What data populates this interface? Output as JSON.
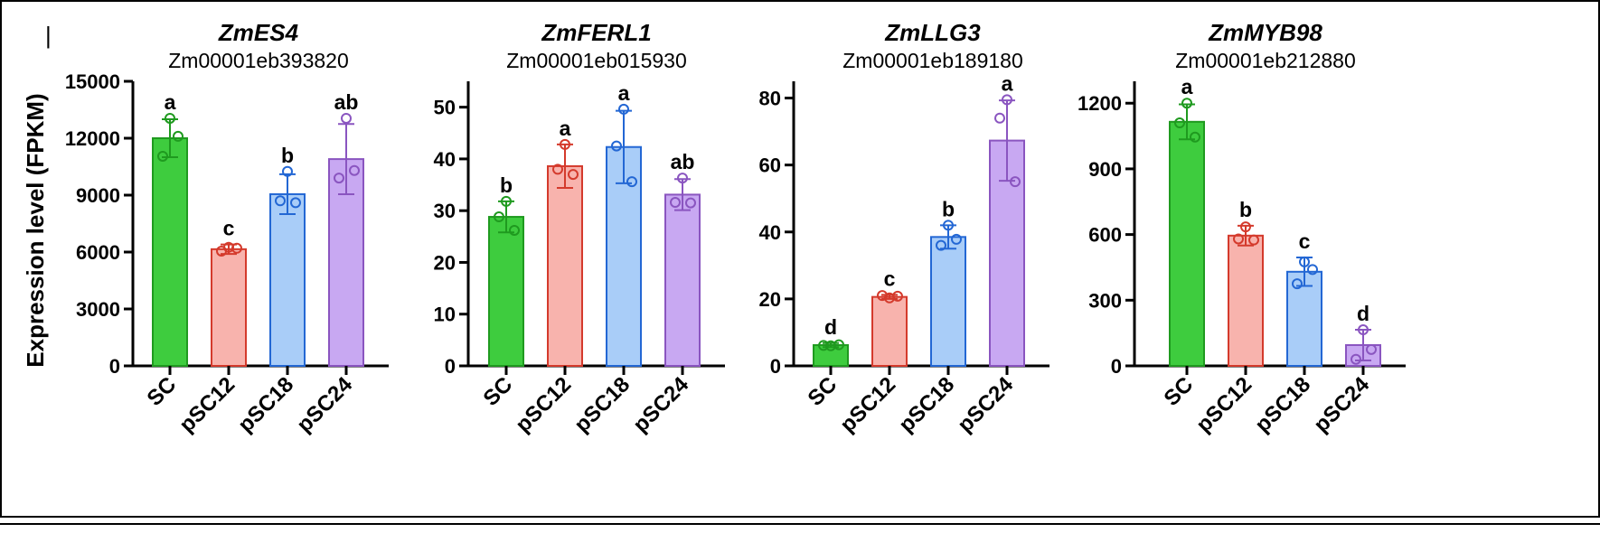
{
  "figure": {
    "ylabel": "Expression level (FPKM)",
    "panel_mark": "|"
  },
  "colors": {
    "SC": {
      "fill": "#3ecc3e",
      "stroke": "#1f9a1f"
    },
    "pSC12": {
      "fill": "#f8b3ad",
      "stroke": "#d43a2c"
    },
    "pSC18": {
      "fill": "#a9cdf8",
      "stroke": "#2367d4"
    },
    "pSC24": {
      "fill": "#c8a8f2",
      "stroke": "#8a55c0"
    }
  },
  "chart_data": [
    {
      "type": "bar",
      "title": "ZmES4",
      "subtitle": "Zm00001eb393820",
      "ylabel": "Expression level (FPKM)",
      "categories": [
        "SC",
        "pSC12",
        "pSC18",
        "pSC24"
      ],
      "values": [
        12000,
        6150,
        9050,
        10900
      ],
      "error": [
        1000,
        250,
        1050,
        1850
      ],
      "points": [
        [
          13050,
          11050,
          12100
        ],
        [
          6250,
          6050,
          6200
        ],
        [
          10250,
          8700,
          8600
        ],
        [
          13050,
          9900,
          10300
        ]
      ],
      "significance": [
        "a",
        "c",
        "b",
        "ab"
      ],
      "ylim": [
        0,
        15000
      ],
      "yticks": [
        0,
        3000,
        6000,
        9000,
        12000,
        15000
      ]
    },
    {
      "type": "bar",
      "title": "ZmFERL1",
      "subtitle": "Zm00001eb015930",
      "ylabel": "",
      "categories": [
        "SC",
        "pSC12",
        "pSC18",
        "pSC24"
      ],
      "values": [
        28.8,
        38.6,
        42.3,
        33.1
      ],
      "error": [
        3.0,
        4.2,
        7.0,
        3.0
      ],
      "points": [
        [
          31.8,
          28.8,
          26.2
        ],
        [
          42.8,
          38.0,
          37.0
        ],
        [
          49.6,
          42.5,
          35.6
        ],
        [
          36.3,
          31.6,
          31.5
        ]
      ],
      "significance": [
        "b",
        "a",
        "a",
        "ab"
      ],
      "ylim": [
        0,
        55
      ],
      "yticks": [
        0,
        10,
        20,
        30,
        40,
        50
      ]
    },
    {
      "type": "bar",
      "title": "ZmLLG3",
      "subtitle": "Zm00001eb189180",
      "ylabel": "",
      "categories": [
        "SC",
        "pSC12",
        "pSC18",
        "pSC24"
      ],
      "values": [
        6.2,
        20.6,
        38.5,
        67.3
      ],
      "error": [
        0.6,
        0.6,
        3.5,
        12.0
      ],
      "points": [
        [
          6.0,
          6.1,
          6.3
        ],
        [
          20.3,
          21.0,
          20.8
        ],
        [
          42.0,
          36.0,
          37.8
        ],
        [
          79.5,
          74.0,
          55.0
        ]
      ],
      "significance": [
        "d",
        "c",
        "b",
        "a"
      ],
      "ylim": [
        0,
        85
      ],
      "yticks": [
        0,
        20,
        40,
        60,
        80
      ]
    },
    {
      "type": "bar",
      "title": "ZmMYB98",
      "subtitle": "Zm00001eb212880",
      "ylabel": "",
      "categories": [
        "SC",
        "pSC12",
        "pSC18",
        "pSC24"
      ],
      "values": [
        1115,
        595,
        430,
        95
      ],
      "error": [
        80,
        45,
        65,
        70
      ],
      "points": [
        [
          1200,
          1110,
          1045
        ],
        [
          635,
          580,
          575
        ],
        [
          475,
          375,
          440
        ],
        [
          165,
          30,
          75
        ]
      ],
      "significance": [
        "a",
        "b",
        "c",
        "d"
      ],
      "ylim": [
        0,
        1300
      ],
      "yticks": [
        0,
        300,
        600,
        900,
        1200
      ]
    }
  ]
}
